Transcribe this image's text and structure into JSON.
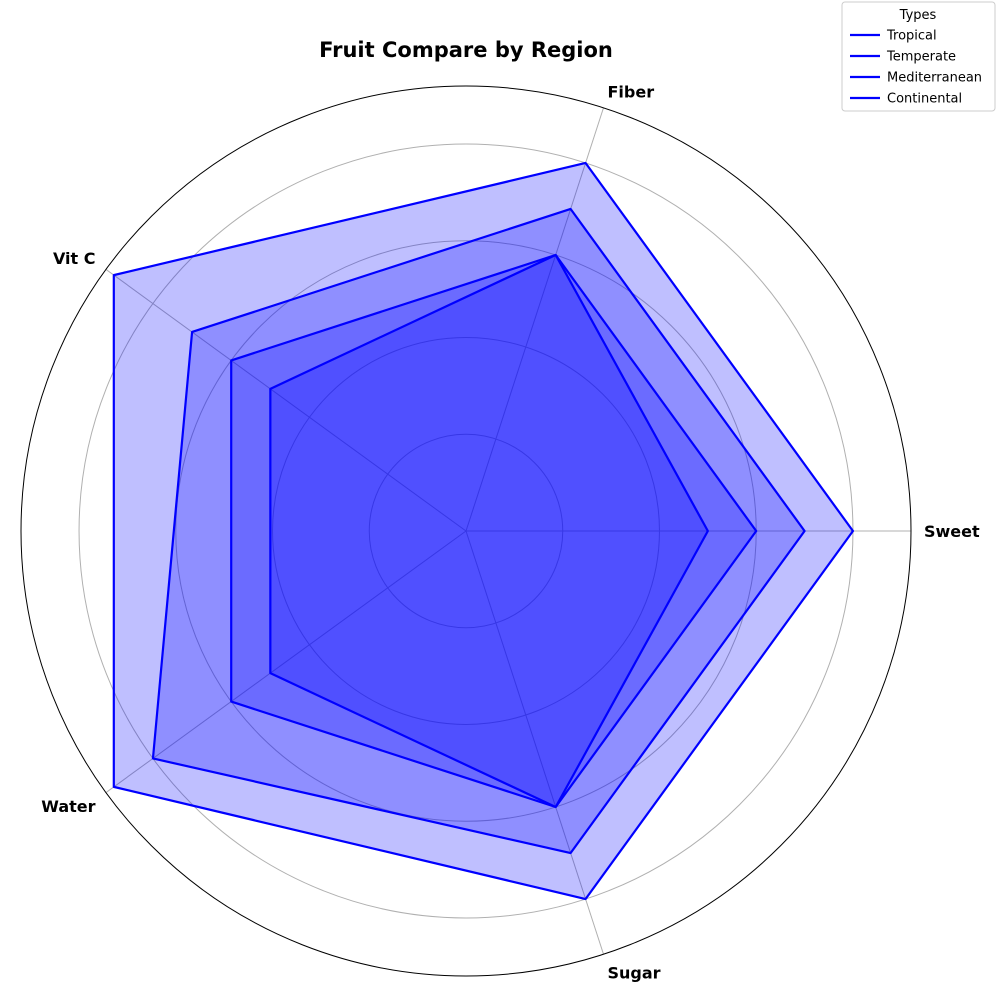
{
  "chart_data": {
    "type": "radar",
    "title": "Fruit Compare by Region",
    "axes": [
      "Sweet",
      "Fiber",
      "Vit C",
      "Water",
      "Sugar"
    ],
    "r_max": 9.2,
    "grid_rings": [
      2,
      4,
      6,
      8
    ],
    "grid": true,
    "legend": {
      "title": "Types",
      "placement": "top-right"
    },
    "series": [
      {
        "name": "Tropical",
        "values": [
          8,
          8,
          9,
          9,
          8
        ]
      },
      {
        "name": "Temperate",
        "values": [
          7,
          7,
          7,
          8,
          7
        ]
      },
      {
        "name": "Mediterranean",
        "values": [
          6,
          6,
          6,
          6,
          6
        ]
      },
      {
        "name": "Continental",
        "values": [
          5,
          6,
          5,
          5,
          6
        ]
      }
    ],
    "line_color": "#0000ff",
    "fill_color": "#0000ff",
    "fill_opacity": 0.25
  }
}
